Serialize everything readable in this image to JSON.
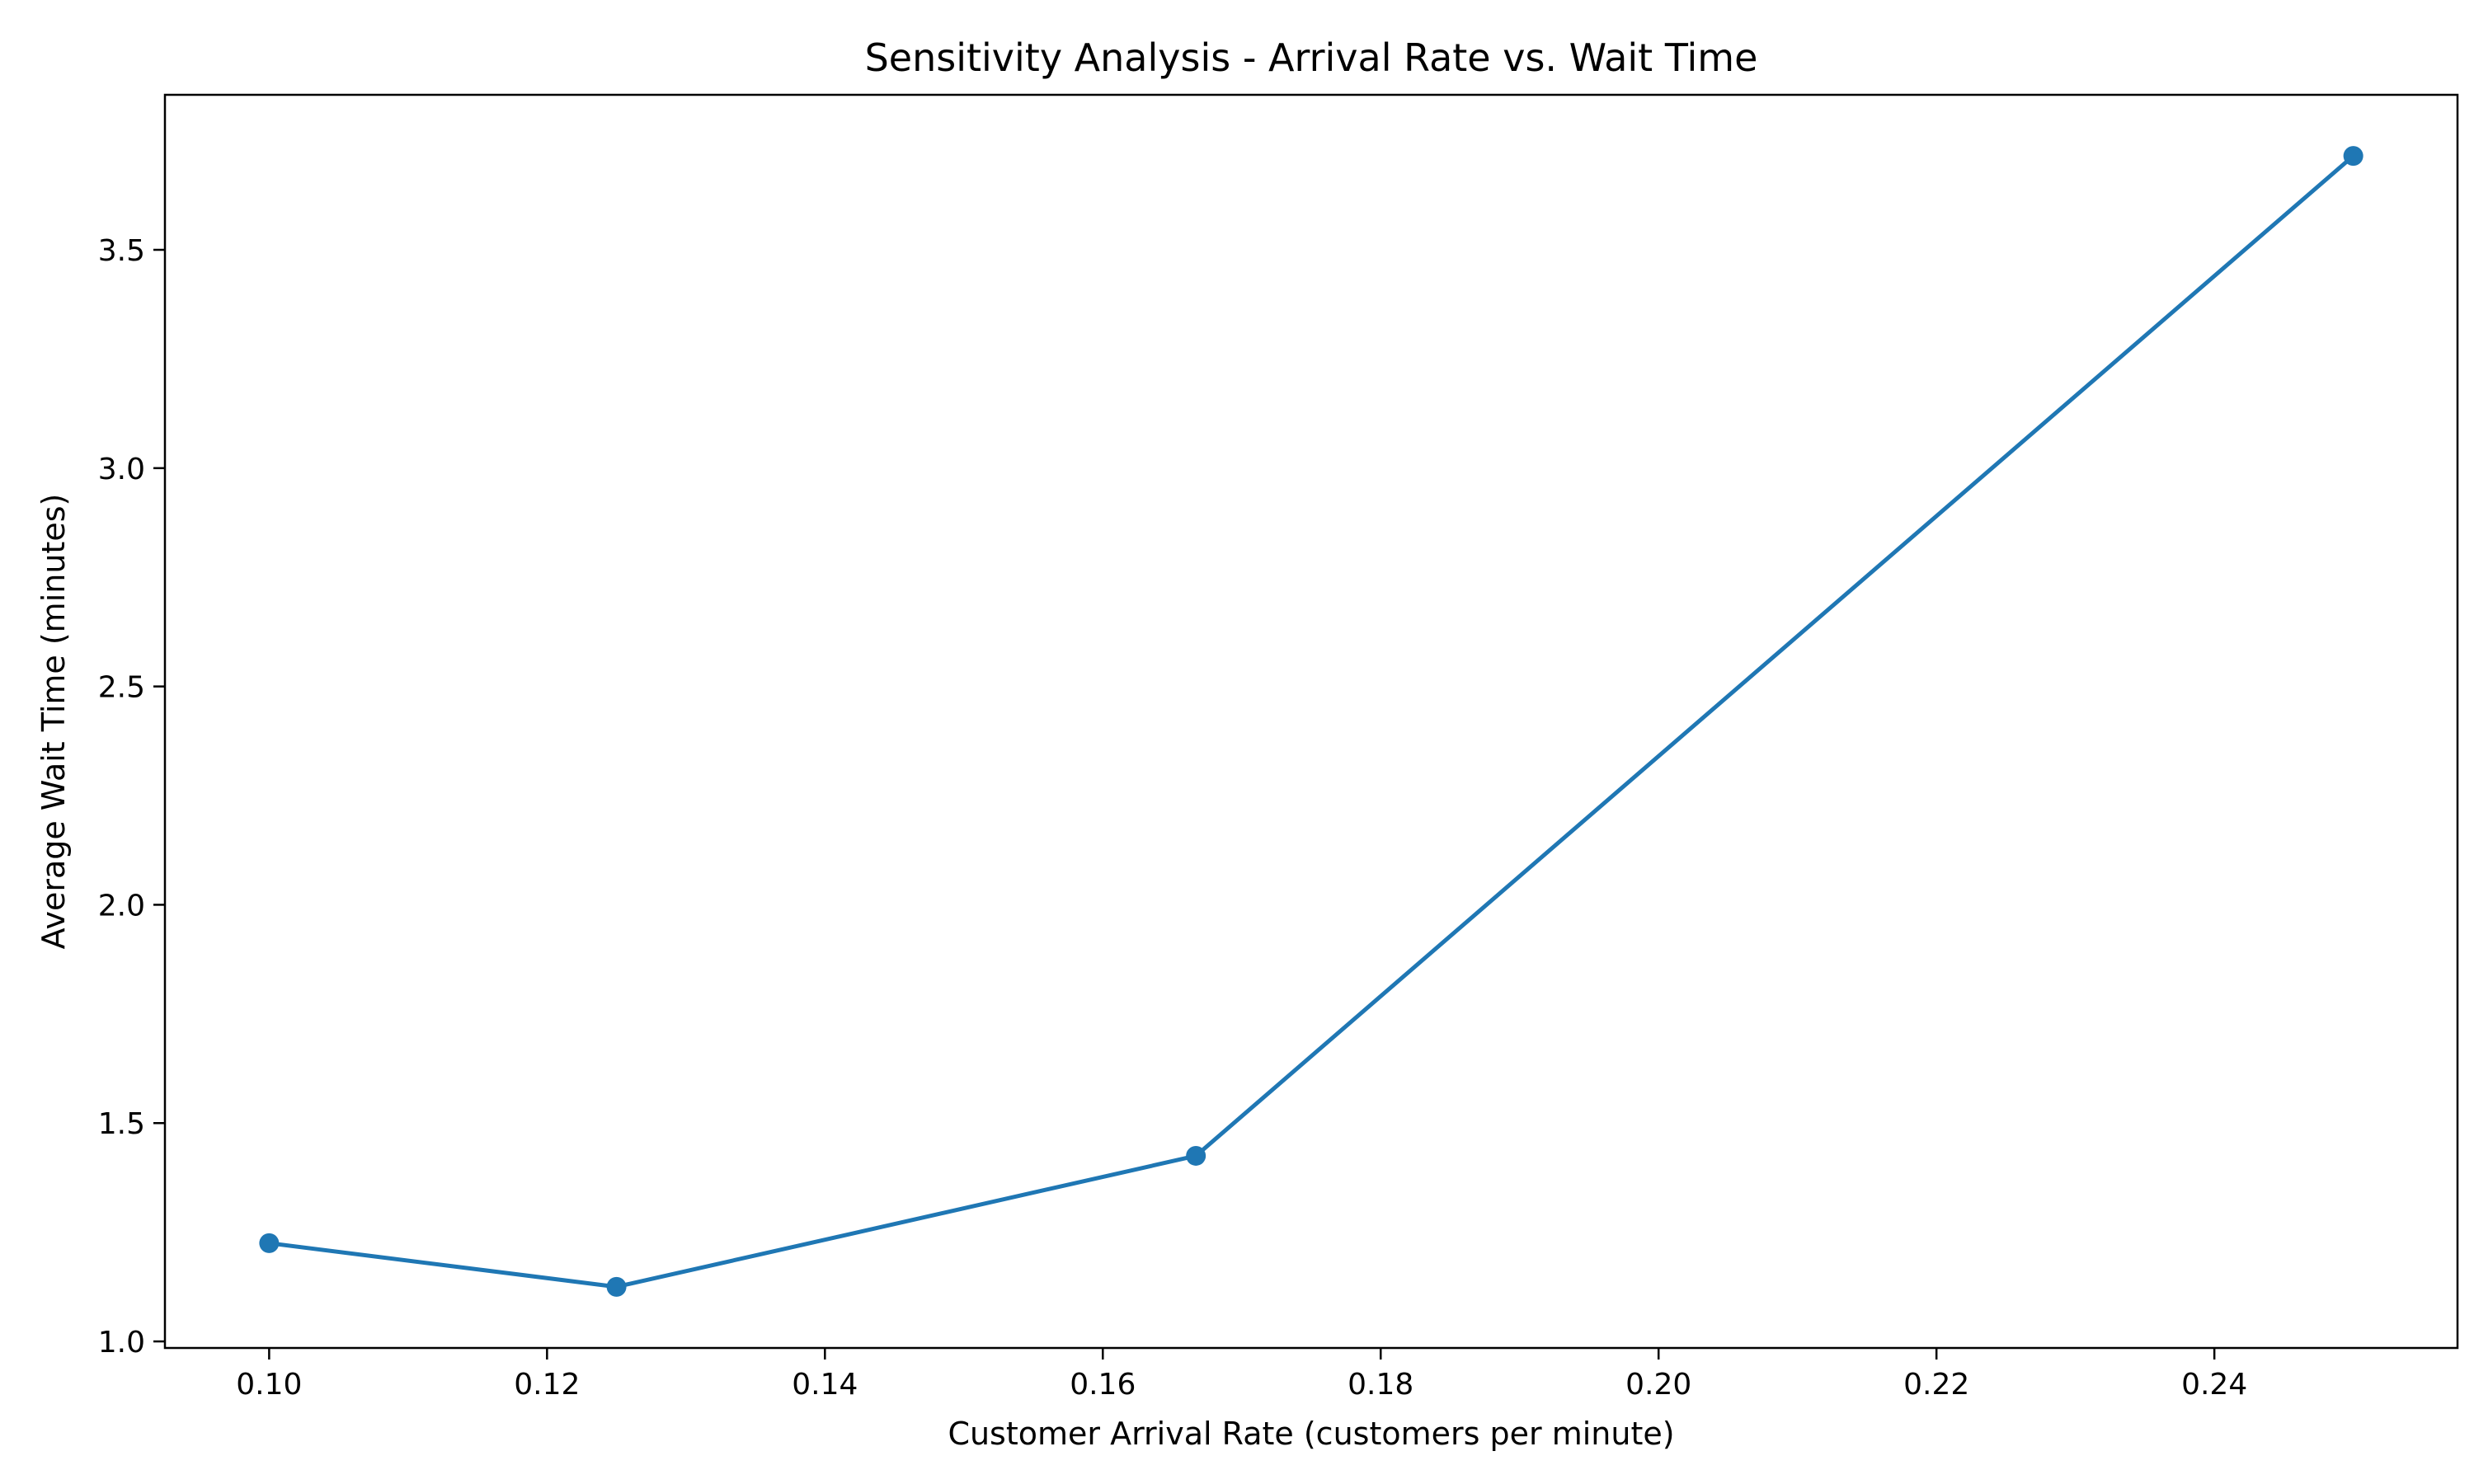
{
  "chart_data": {
    "type": "line",
    "title": "Sensitivity Analysis - Arrival Rate vs. Wait Time",
    "xlabel": "Customer Arrival Rate (customers per minute)",
    "ylabel": "Average Wait Time (minutes)",
    "xlim": [
      0.0925,
      0.2575
    ],
    "ylim": [
      0.985,
      3.855
    ],
    "xticks": [
      0.1,
      0.12,
      0.14,
      0.16,
      0.18,
      0.2,
      0.22,
      0.24
    ],
    "xtick_labels": [
      "0.10",
      "0.12",
      "0.14",
      "0.16",
      "0.18",
      "0.20",
      "0.22",
      "0.24"
    ],
    "yticks": [
      1.0,
      1.5,
      2.0,
      2.5,
      3.0,
      3.5
    ],
    "ytick_labels": [
      "1.0",
      "1.5",
      "2.0",
      "2.5",
      "3.0",
      "3.5"
    ],
    "grid": false,
    "series": [
      {
        "color": "#1f77b4",
        "marker": "circle",
        "x": [
          0.1,
          0.125,
          0.1667,
          0.25
        ],
        "y": [
          1.225,
          1.125,
          1.425,
          3.715
        ]
      }
    ]
  }
}
